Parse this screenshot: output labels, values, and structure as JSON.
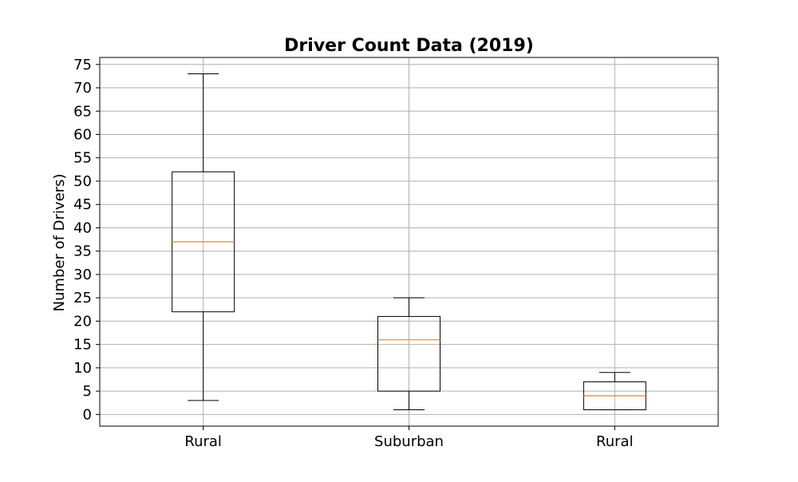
{
  "chart_data": {
    "type": "box",
    "title": "Driver Count Data (2019)",
    "xlabel": "",
    "ylabel": "Number of Drivers)",
    "categories": [
      "Rural",
      "Suburban",
      "Rural"
    ],
    "boxes": [
      {
        "category": "Rural",
        "whisker_low": 3,
        "q1": 22,
        "median": 37,
        "q3": 52,
        "whisker_high": 73
      },
      {
        "category": "Suburban",
        "whisker_low": 1,
        "q1": 5,
        "median": 16,
        "q3": 21,
        "whisker_high": 25
      },
      {
        "category": "Rural",
        "whisker_low": 1,
        "q1": 1,
        "median": 4,
        "q3": 7,
        "whisker_high": 9
      }
    ],
    "ylim": [
      -2.5,
      76.5
    ],
    "yticks": [
      0,
      5,
      10,
      15,
      20,
      25,
      30,
      35,
      40,
      45,
      50,
      55,
      60,
      65,
      70,
      75
    ],
    "grid": true,
    "colors": {
      "box": "#000000",
      "median": "#ff7f0e",
      "grid": "#b0b0b0"
    }
  }
}
